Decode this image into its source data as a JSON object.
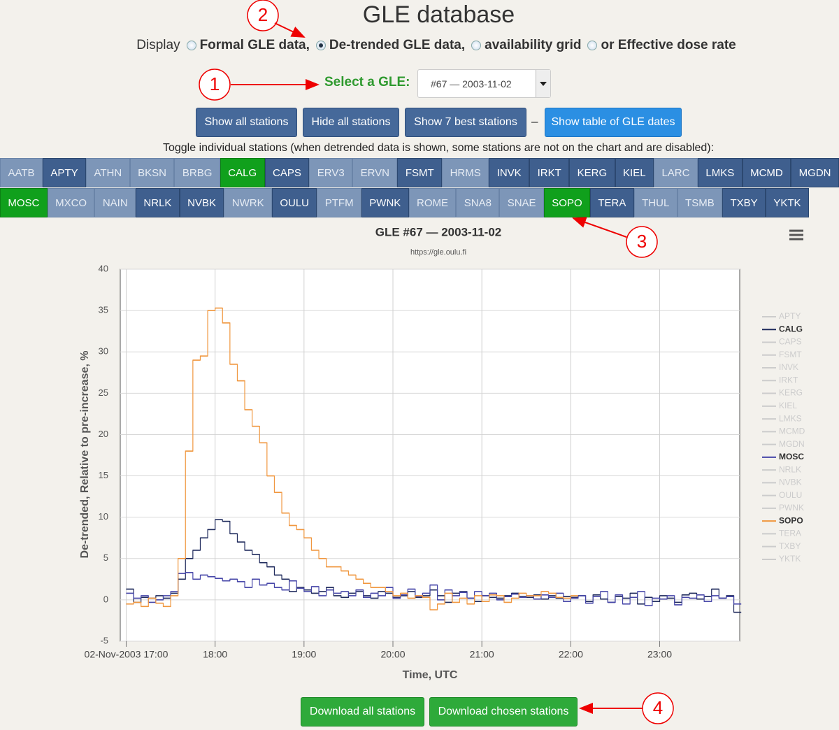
{
  "header": {
    "title": "GLE database"
  },
  "display": {
    "label": "Display",
    "options": [
      "Formal GLE data,",
      "De-trended GLE data,",
      "availability grid",
      "or Effective dose rate"
    ],
    "selected": 1
  },
  "selector": {
    "label": "Select a GLE:",
    "value": "#67 — 2003-11-02"
  },
  "buttons": [
    "Show all stations",
    "Hide all stations",
    "Show 7 best stations"
  ],
  "separator": "–",
  "dates_button": "Show table of GLE dates",
  "toggle_hint": "Toggle individual stations (when detrended data is shown, some stations are not on the chart and are disabled):",
  "stations": [
    [
      {
        "name": "AATB",
        "state": "disabled"
      },
      {
        "name": "APTY",
        "state": "enabled"
      },
      {
        "name": "ATHN",
        "state": "disabled"
      },
      {
        "name": "BKSN",
        "state": "disabled"
      },
      {
        "name": "BRBG",
        "state": "disabled"
      },
      {
        "name": "CALG",
        "state": "active"
      },
      {
        "name": "CAPS",
        "state": "enabled"
      },
      {
        "name": "ERV3",
        "state": "disabled"
      },
      {
        "name": "ERVN",
        "state": "disabled"
      },
      {
        "name": "FSMT",
        "state": "enabled"
      },
      {
        "name": "HRMS",
        "state": "disabled"
      },
      {
        "name": "INVK",
        "state": "enabled"
      },
      {
        "name": "IRKT",
        "state": "enabled"
      },
      {
        "name": "KERG",
        "state": "enabled"
      },
      {
        "name": "KIEL",
        "state": "enabled"
      },
      {
        "name": "LARC",
        "state": "disabled"
      },
      {
        "name": "LMKS",
        "state": "enabled"
      },
      {
        "name": "MCMD",
        "state": "enabled"
      },
      {
        "name": "MGDN",
        "state": "enabled"
      }
    ],
    [
      {
        "name": "MOSC",
        "state": "active"
      },
      {
        "name": "MXCO",
        "state": "disabled"
      },
      {
        "name": "NAIN",
        "state": "disabled"
      },
      {
        "name": "NRLK",
        "state": "enabled"
      },
      {
        "name": "NVBK",
        "state": "enabled"
      },
      {
        "name": "NWRK",
        "state": "disabled"
      },
      {
        "name": "OULU",
        "state": "enabled"
      },
      {
        "name": "PTFM",
        "state": "disabled"
      },
      {
        "name": "PWNK",
        "state": "enabled"
      },
      {
        "name": "ROME",
        "state": "disabled"
      },
      {
        "name": "SNA8",
        "state": "disabled"
      },
      {
        "name": "SNAE",
        "state": "disabled"
      },
      {
        "name": "SOPO",
        "state": "active"
      },
      {
        "name": "TERA",
        "state": "enabled"
      },
      {
        "name": "THUL",
        "state": "disabled"
      },
      {
        "name": "TSMB",
        "state": "disabled"
      },
      {
        "name": "TXBY",
        "state": "enabled"
      },
      {
        "name": "YKTK",
        "state": "enabled"
      }
    ]
  ],
  "chart_data": {
    "type": "line",
    "step": true,
    "title": "GLE #67 — 2003-11-02",
    "subtitle": "https://gle.oulu.fi",
    "y_label": "De-trended, Relative to pre-increase, %",
    "x_label": "Time, UTC",
    "x": [
      0,
      5,
      10,
      15,
      20,
      25,
      30,
      35,
      40,
      45,
      50,
      55,
      60,
      65,
      70,
      75,
      80,
      85,
      90,
      95,
      100,
      105,
      110,
      115,
      120,
      125,
      130,
      135,
      140,
      145,
      150,
      155,
      160,
      165,
      170,
      175,
      180,
      185,
      190,
      195,
      200,
      205,
      210,
      215,
      220,
      225,
      230,
      235,
      240,
      245,
      250,
      255,
      260,
      265,
      270,
      275,
      280,
      285,
      290,
      295,
      300,
      305,
      310,
      315,
      320,
      325,
      330,
      335,
      340,
      345,
      350,
      355,
      360,
      365,
      370,
      375,
      380,
      385,
      390,
      395,
      400,
      405,
      410
    ],
    "xlim": [
      -4,
      414
    ],
    "xticks": [
      {
        "value": 0,
        "label": "02-Nov-2003 17:00"
      },
      {
        "value": 60,
        "label": "18:00"
      },
      {
        "value": 120,
        "label": "19:00"
      },
      {
        "value": 180,
        "label": "20:00"
      },
      {
        "value": 240,
        "label": "21:00"
      },
      {
        "value": 300,
        "label": "22:00"
      },
      {
        "value": 360,
        "label": "23:00"
      }
    ],
    "ylim": [
      -5,
      40
    ],
    "yticks": [
      -5,
      0,
      5,
      10,
      15,
      20,
      25,
      30,
      35,
      40
    ],
    "grid": true,
    "legend": "right",
    "series": [
      {
        "name": "APTY",
        "color": "#cccccc",
        "visible": false
      },
      {
        "name": "CALG",
        "color": "#1f2a5c",
        "visible": true,
        "values": [
          1.3,
          -0.3,
          0.3,
          0.2,
          0.5,
          0.2,
          0.8,
          2.5,
          5,
          6,
          7.5,
          8.5,
          9.7,
          9.5,
          8,
          7,
          6,
          5.5,
          4.5,
          4,
          3,
          2.5,
          1,
          1.5,
          1.2,
          0.8,
          1,
          1.5,
          0.5,
          0.3,
          0.8,
          1,
          0.5,
          0.2,
          1,
          0.8,
          0.3,
          0.5,
          1,
          0.3,
          0.5,
          1.2,
          0.5,
          -0.3,
          0.8,
          1,
          0.2,
          -0.2,
          0.5,
          0.3,
          0.2,
          0.5,
          0.8,
          0.4,
          0.3,
          0.6,
          0.1,
          0.5,
          0.2,
          0.4,
          0.3,
          0.5,
          -0.2,
          0.6,
          0.1,
          -0.3,
          0.4,
          0.2,
          0.8,
          -0.5,
          0.3,
          -0.2,
          0.5,
          0.2,
          -0.3,
          0.6,
          0.8,
          0.1,
          0.4,
          1.3,
          0.2,
          0.5,
          -1.5
        ]
      },
      {
        "name": "CAPS",
        "color": "#cccccc",
        "visible": false
      },
      {
        "name": "FSMT",
        "color": "#cccccc",
        "visible": false
      },
      {
        "name": "INVK",
        "color": "#cccccc",
        "visible": false
      },
      {
        "name": "IRKT",
        "color": "#cccccc",
        "visible": false
      },
      {
        "name": "KERG",
        "color": "#cccccc",
        "visible": false
      },
      {
        "name": "KIEL",
        "color": "#cccccc",
        "visible": false
      },
      {
        "name": "LMKS",
        "color": "#cccccc",
        "visible": false
      },
      {
        "name": "MCMD",
        "color": "#cccccc",
        "visible": false
      },
      {
        "name": "MGDN",
        "color": "#cccccc",
        "visible": false
      },
      {
        "name": "MOSC",
        "color": "#4646a8",
        "visible": true,
        "values": [
          0.8,
          0.2,
          0.5,
          -0.3,
          0,
          0.5,
          1,
          3.2,
          3.3,
          2.5,
          3,
          2.8,
          2.6,
          2.3,
          2.5,
          2.2,
          1.5,
          2.5,
          1.8,
          2,
          1.5,
          1.2,
          2.3,
          1.4,
          1,
          1.6,
          0.5,
          1.2,
          0.8,
          1,
          0.5,
          1.2,
          0.3,
          0.8,
          0.5,
          1.5,
          0.2,
          0.6,
          1.3,
          0.4,
          0.8,
          1.8,
          0,
          1.2,
          0.5,
          0.9,
          0.2,
          1,
          0.5,
          0.8,
          0,
          0.4,
          0.7,
          0.3,
          0.5,
          0.1,
          0.6,
          0.3,
          0.8,
          -0.2,
          0.2,
          0.5,
          -0.4,
          0.4,
          1,
          -0.3,
          0.6,
          -0.5,
          0.3,
          1,
          -0.7,
          0.2,
          0.1,
          0.5,
          -0.6,
          0.3,
          0.2,
          0.6,
          -0.2,
          0.5,
          0.2,
          0.4,
          -0.5
        ]
      },
      {
        "name": "NRLK",
        "color": "#cccccc",
        "visible": false
      },
      {
        "name": "NVBK",
        "color": "#cccccc",
        "visible": false
      },
      {
        "name": "OULU",
        "color": "#cccccc",
        "visible": false
      },
      {
        "name": "PWNK",
        "color": "#cccccc",
        "visible": false
      },
      {
        "name": "SOPO",
        "color": "#f0973f",
        "visible": true,
        "values": [
          -0.5,
          -0.3,
          -0.8,
          0.2,
          -0.4,
          -0.8,
          0.5,
          5,
          18,
          29,
          29.5,
          35,
          35.3,
          33.5,
          28.5,
          26.5,
          23,
          21,
          19,
          15,
          13,
          10.5,
          9,
          8.5,
          7.5,
          6,
          5,
          4,
          4,
          3.5,
          3,
          2.5,
          2,
          1.5,
          1.5,
          1,
          0.5,
          0.8,
          0.2,
          0.5,
          0.3,
          -1.2,
          -0.5,
          0.8,
          -0.3,
          0.2,
          -0.5,
          0.5,
          -0.2,
          0.6,
          0.5,
          -0.3,
          0.2,
          0.8,
          0.5,
          0.5,
          1,
          0.8,
          0.3,
          0.2,
          0.5,
          null,
          null,
          null,
          null,
          null,
          null,
          null,
          null,
          null,
          null,
          null,
          null,
          null,
          null,
          null,
          null,
          null,
          null,
          null,
          null,
          null,
          null
        ]
      },
      {
        "name": "TERA",
        "color": "#cccccc",
        "visible": false
      },
      {
        "name": "TXBY",
        "color": "#cccccc",
        "visible": false
      },
      {
        "name": "YKTK",
        "color": "#cccccc",
        "visible": false
      }
    ]
  },
  "downloads": [
    "Download all stations",
    "Download chosen stations"
  ],
  "annotations": [
    "1",
    "2",
    "3",
    "4"
  ]
}
